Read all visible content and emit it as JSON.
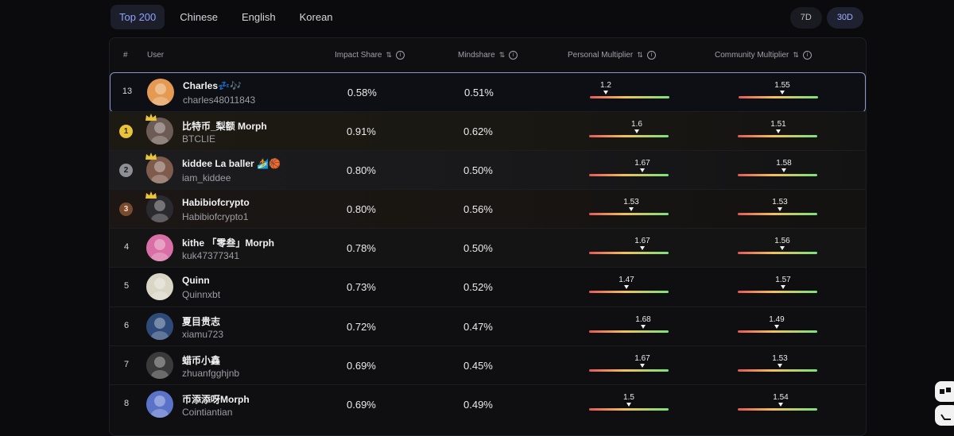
{
  "tabs": [
    "Top 200",
    "Chinese",
    "English",
    "Korean"
  ],
  "range": [
    "7D",
    "30D"
  ],
  "columns": {
    "rank": "#",
    "user": "User",
    "impact": "Impact Share",
    "mindshare": "Mindshare",
    "personal": "Personal Multiplier",
    "community": "Community Multiplier"
  },
  "rows": [
    {
      "rank": "13",
      "name": "Charles💤🎶",
      "handle": "charles48011843",
      "impact": "0.58%",
      "mind": "0.51%",
      "pm": "1.2",
      "cm": "1.55",
      "pm_v": 0.2,
      "cm_v": 0.55,
      "type": "self",
      "avatar_color": "#e59a52"
    },
    {
      "rank": "1",
      "name": "比特币_梨额 Morph",
      "handle": "BTCLIE",
      "impact": "0.91%",
      "mind": "0.62%",
      "pm": "1.6",
      "cm": "1.51",
      "pm_v": 0.6,
      "cm_v": 0.51,
      "type": "gold",
      "avatar_color": "#6d5b55"
    },
    {
      "rank": "2",
      "name": "kiddee La baller 🏄🏀",
      "handle": "iam_kiddee",
      "impact": "0.80%",
      "mind": "0.50%",
      "pm": "1.67",
      "cm": "1.58",
      "pm_v": 0.67,
      "cm_v": 0.58,
      "type": "silver",
      "avatar_color": "#7e5b4c"
    },
    {
      "rank": "3",
      "name": "Habibiofcrypto",
      "handle": "Habibiofcrypto1",
      "impact": "0.80%",
      "mind": "0.56%",
      "pm": "1.53",
      "cm": "1.53",
      "pm_v": 0.53,
      "cm_v": 0.53,
      "type": "bronze",
      "avatar_color": "#2a2a2f"
    },
    {
      "rank": "4",
      "name": "kithe 「零叁」Morph",
      "handle": "kuk47377341",
      "impact": "0.78%",
      "mind": "0.50%",
      "pm": "1.67",
      "cm": "1.56",
      "pm_v": 0.67,
      "cm_v": 0.56,
      "type": "alt",
      "avatar_color": "#d96fa6"
    },
    {
      "rank": "5",
      "name": "Quinn",
      "handle": "Quinnxbt",
      "impact": "0.73%",
      "mind": "0.52%",
      "pm": "1.47",
      "cm": "1.57",
      "pm_v": 0.47,
      "cm_v": 0.57,
      "type": "plain",
      "avatar_color": "#d9d6c6"
    },
    {
      "rank": "6",
      "name": "夏目贵志",
      "handle": "xiamu723",
      "impact": "0.72%",
      "mind": "0.47%",
      "pm": "1.68",
      "cm": "1.49",
      "pm_v": 0.68,
      "cm_v": 0.49,
      "type": "plain",
      "avatar_color": "#2d4a78"
    },
    {
      "rank": "7",
      "name": "蜡币小鑫",
      "handle": "zhuanfgghjnb",
      "impact": "0.69%",
      "mind": "0.45%",
      "pm": "1.67",
      "cm": "1.53",
      "pm_v": 0.67,
      "cm_v": 0.53,
      "type": "plain",
      "avatar_color": "#3a3a3a"
    },
    {
      "rank": "8",
      "name": "币添添呀Morph",
      "handle": "Cointiantian",
      "impact": "0.69%",
      "mind": "0.49%",
      "pm": "1.5",
      "cm": "1.54",
      "pm_v": 0.5,
      "cm_v": 0.54,
      "type": "plain",
      "avatar_color": "#5a72c8"
    }
  ]
}
